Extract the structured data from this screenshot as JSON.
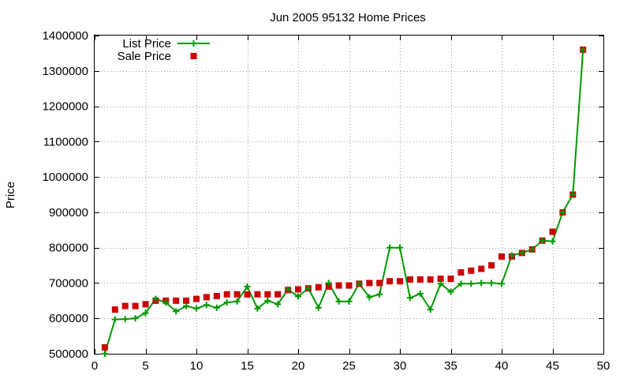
{
  "chart_data": {
    "type": "line",
    "title": "Jun 2005 95132 Home Prices",
    "xlabel": "",
    "ylabel": "Price",
    "xlim": [
      0,
      50
    ],
    "ylim": [
      500000,
      1400000
    ],
    "x_ticks": [
      0,
      5,
      10,
      15,
      20,
      25,
      30,
      35,
      40,
      45,
      50
    ],
    "y_ticks": [
      500000,
      600000,
      700000,
      800000,
      900000,
      1000000,
      1100000,
      1200000,
      1300000,
      1400000
    ],
    "grid": true,
    "legend_position": "top-left",
    "x": [
      1,
      2,
      3,
      4,
      5,
      6,
      7,
      8,
      9,
      10,
      11,
      12,
      13,
      14,
      15,
      16,
      17,
      18,
      19,
      20,
      21,
      22,
      23,
      24,
      25,
      26,
      27,
      28,
      29,
      30,
      31,
      32,
      33,
      34,
      35,
      36,
      37,
      38,
      39,
      40,
      41,
      42,
      43,
      44,
      45,
      46,
      47,
      48
    ],
    "series": [
      {
        "name": "List Price",
        "style": "linespoints",
        "marker": "plus",
        "color": "#009900",
        "values": [
          500000,
          597000,
          598000,
          600000,
          615000,
          655000,
          645000,
          620000,
          635000,
          628000,
          638000,
          630000,
          645000,
          648000,
          690000,
          628000,
          650000,
          640000,
          682000,
          662000,
          685000,
          630000,
          700000,
          648000,
          648000,
          698000,
          660000,
          668000,
          800000,
          800000,
          658000,
          670000,
          625000,
          698000,
          675000,
          698000,
          698000,
          700000,
          700000,
          698000,
          778000,
          785000,
          795000,
          820000,
          818000,
          900000,
          950000,
          1360000
        ]
      },
      {
        "name": "Sale Price",
        "style": "points",
        "marker": "square",
        "color": "#cc0000",
        "values": [
          518000,
          625000,
          635000,
          635000,
          640000,
          650000,
          650000,
          650000,
          650000,
          655000,
          660000,
          663000,
          668000,
          668000,
          668000,
          668000,
          668000,
          668000,
          680000,
          682000,
          685000,
          688000,
          690000,
          693000,
          693000,
          698000,
          700000,
          700000,
          705000,
          705000,
          710000,
          710000,
          710000,
          712000,
          712000,
          730000,
          735000,
          740000,
          750000,
          775000,
          775000,
          785000,
          795000,
          820000,
          845000,
          900000,
          950000,
          1360000
        ]
      }
    ]
  }
}
